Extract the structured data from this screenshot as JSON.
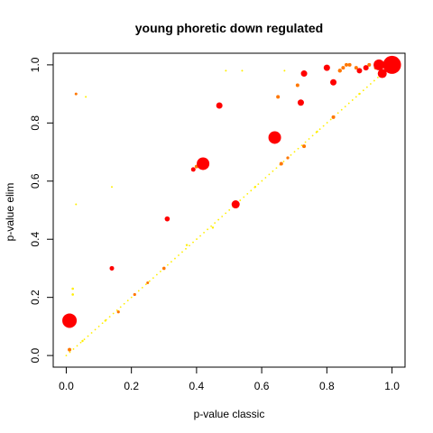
{
  "chart_data": {
    "type": "scatter",
    "title": "young phoretic down regulated",
    "xlabel": "p-value classic",
    "ylabel": "p-value elim",
    "xlim": [
      -0.04,
      1.04
    ],
    "ylim": [
      -0.04,
      1.04
    ],
    "x_ticks": [
      0.0,
      0.2,
      0.4,
      0.6,
      0.8,
      1.0
    ],
    "y_ticks": [
      0.0,
      0.2,
      0.4,
      0.6,
      0.8,
      1.0
    ],
    "x_tick_labels": [
      "0.0",
      "0.2",
      "0.4",
      "0.6",
      "0.8",
      "1.0"
    ],
    "y_tick_labels": [
      "0.0",
      "0.2",
      "0.4",
      "0.6",
      "0.8",
      "1.0"
    ],
    "grid": false,
    "legend": "none",
    "colors": {
      "high": "#ff0000",
      "mid": "#ff7700",
      "low": "#ffee00"
    },
    "points": [
      {
        "x": 0.01,
        "y": 0.12,
        "size": 8,
        "color": "high"
      },
      {
        "x": 0.42,
        "y": 0.66,
        "size": 7,
        "color": "high"
      },
      {
        "x": 0.64,
        "y": 0.75,
        "size": 7,
        "color": "high"
      },
      {
        "x": 1.0,
        "y": 1.0,
        "size": 10,
        "color": "high"
      },
      {
        "x": 0.96,
        "y": 1.0,
        "size": 6,
        "color": "high"
      },
      {
        "x": 0.97,
        "y": 0.97,
        "size": 5,
        "color": "high"
      },
      {
        "x": 0.52,
        "y": 0.52,
        "size": 4.5,
        "color": "high"
      },
      {
        "x": 0.47,
        "y": 0.86,
        "size": 3.5,
        "color": "high"
      },
      {
        "x": 0.73,
        "y": 0.97,
        "size": 3.5,
        "color": "high"
      },
      {
        "x": 0.8,
        "y": 0.99,
        "size": 3.5,
        "color": "high"
      },
      {
        "x": 0.82,
        "y": 0.94,
        "size": 3.5,
        "color": "high"
      },
      {
        "x": 0.72,
        "y": 0.87,
        "size": 3.5,
        "color": "high"
      },
      {
        "x": 0.9,
        "y": 0.98,
        "size": 3,
        "color": "high"
      },
      {
        "x": 0.92,
        "y": 0.99,
        "size": 3,
        "color": "high"
      },
      {
        "x": 0.31,
        "y": 0.47,
        "size": 2.8,
        "color": "high"
      },
      {
        "x": 0.39,
        "y": 0.64,
        "size": 2.5,
        "color": "high"
      },
      {
        "x": 0.14,
        "y": 0.3,
        "size": 2.5,
        "color": "high"
      },
      {
        "x": 0.65,
        "y": 0.89,
        "size": 2,
        "color": "mid"
      },
      {
        "x": 0.71,
        "y": 0.93,
        "size": 2,
        "color": "mid"
      },
      {
        "x": 0.84,
        "y": 0.98,
        "size": 2.2,
        "color": "mid"
      },
      {
        "x": 0.85,
        "y": 0.99,
        "size": 2,
        "color": "mid"
      },
      {
        "x": 0.86,
        "y": 1.0,
        "size": 2,
        "color": "mid"
      },
      {
        "x": 0.87,
        "y": 1.0,
        "size": 2,
        "color": "mid"
      },
      {
        "x": 0.89,
        "y": 0.99,
        "size": 2,
        "color": "mid"
      },
      {
        "x": 0.93,
        "y": 1.0,
        "size": 2,
        "color": "mid"
      },
      {
        "x": 0.95,
        "y": 0.99,
        "size": 2,
        "color": "mid"
      },
      {
        "x": 0.73,
        "y": 0.72,
        "size": 2,
        "color": "mid"
      },
      {
        "x": 0.82,
        "y": 0.82,
        "size": 2,
        "color": "mid"
      },
      {
        "x": 0.66,
        "y": 0.66,
        "size": 2,
        "color": "mid"
      },
      {
        "x": 0.4,
        "y": 0.65,
        "size": 2,
        "color": "mid"
      },
      {
        "x": 0.01,
        "y": 0.02,
        "size": 2,
        "color": "mid"
      },
      {
        "x": 0.3,
        "y": 0.3,
        "size": 1.8,
        "color": "mid"
      },
      {
        "x": 0.21,
        "y": 0.21,
        "size": 1.6,
        "color": "mid"
      },
      {
        "x": 0.16,
        "y": 0.15,
        "size": 1.6,
        "color": "mid"
      },
      {
        "x": 0.03,
        "y": 0.9,
        "size": 1.5,
        "color": "mid"
      },
      {
        "x": 0.68,
        "y": 0.68,
        "size": 1.6,
        "color": "mid"
      },
      {
        "x": 0.25,
        "y": 0.25,
        "size": 1.5,
        "color": "mid"
      },
      {
        "x": 0.02,
        "y": 0.21,
        "size": 1.3,
        "color": "low"
      },
      {
        "x": 0.02,
        "y": 0.23,
        "size": 1.3,
        "color": "low"
      },
      {
        "x": 0.03,
        "y": 0.52,
        "size": 1,
        "color": "low"
      },
      {
        "x": 0.06,
        "y": 0.89,
        "size": 1,
        "color": "low"
      },
      {
        "x": 0.14,
        "y": 0.58,
        "size": 1,
        "color": "low"
      },
      {
        "x": 0.49,
        "y": 0.98,
        "size": 1,
        "color": "low"
      },
      {
        "x": 0.54,
        "y": 0.98,
        "size": 1,
        "color": "low"
      },
      {
        "x": 0.67,
        "y": 0.98,
        "size": 1,
        "color": "low"
      },
      {
        "x": 0.37,
        "y": 0.38,
        "size": 1.2,
        "color": "low"
      },
      {
        "x": 0.58,
        "y": 0.58,
        "size": 1.2,
        "color": "low"
      },
      {
        "x": 0.45,
        "y": 0.44,
        "size": 1.2,
        "color": "low"
      },
      {
        "x": 0.9,
        "y": 0.9,
        "size": 1.2,
        "color": "low"
      },
      {
        "x": 0.12,
        "y": 0.12,
        "size": 1.2,
        "color": "low"
      },
      {
        "x": 0.05,
        "y": 0.05,
        "size": 1.2,
        "color": "low"
      },
      {
        "x": 0.77,
        "y": 0.77,
        "size": 1.2,
        "color": "low"
      }
    ],
    "diagonal_band": {
      "from": 0.0,
      "to": 0.99,
      "count": 90,
      "color": "low"
    }
  }
}
